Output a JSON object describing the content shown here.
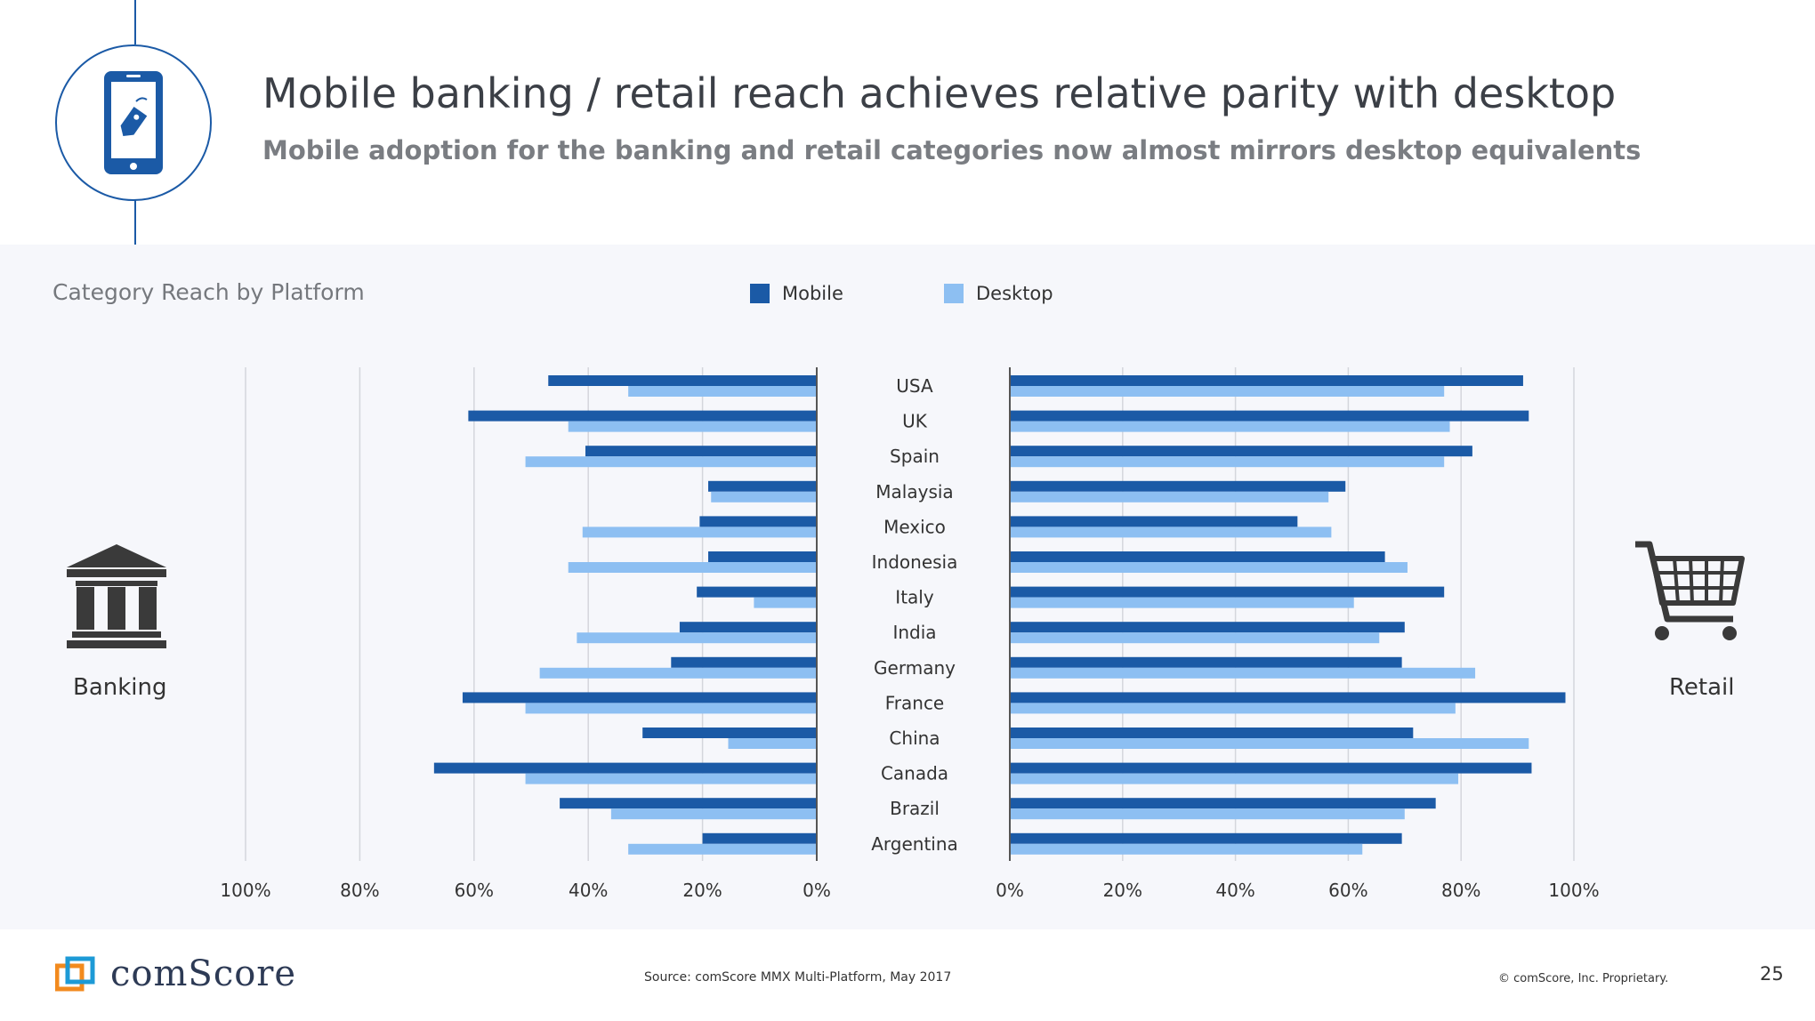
{
  "header": {
    "title": "Mobile banking / retail reach achieves relative parity with desktop",
    "subtitle": "Mobile adoption for the banking and retail categories now almost mirrors desktop equivalents",
    "icon": "mobile-tag-icon"
  },
  "panel": {
    "title": "Category Reach by Platform",
    "banking_label": "Banking",
    "retail_label": "Retail",
    "banking_icon": "bank-icon",
    "retail_icon": "shopping-cart-icon"
  },
  "legend": {
    "mobile": "Mobile",
    "desktop": "Desktop"
  },
  "colors": {
    "mobile": "#1b5aa6",
    "desktop": "#8dbff2",
    "accent": "#1b5aa6"
  },
  "chart_data": [
    {
      "type": "bar",
      "orientation": "horizontal",
      "direction": "right-to-left",
      "title": "",
      "categories": [
        "USA",
        "UK",
        "Spain",
        "Malaysia",
        "Mexico",
        "Indonesia",
        "Italy",
        "India",
        "Germany",
        "France",
        "China",
        "Canada",
        "Brazil",
        "Argentina"
      ],
      "series": [
        {
          "name": "Mobile",
          "values": [
            47,
            61,
            40.5,
            19,
            20.5,
            19,
            21,
            24,
            25.5,
            62,
            30.5,
            67,
            45,
            20
          ]
        },
        {
          "name": "Desktop",
          "values": [
            33,
            43.5,
            51,
            18.5,
            41,
            43.5,
            11,
            42,
            48.5,
            51,
            15.5,
            51,
            36,
            33
          ]
        }
      ],
      "xlim": [
        0,
        100
      ],
      "ticks": [
        "100%",
        "80%",
        "60%",
        "40%",
        "20%",
        "0%"
      ],
      "grid": true
    },
    {
      "type": "bar",
      "orientation": "horizontal",
      "direction": "left-to-right",
      "title": "",
      "categories": [
        "USA",
        "UK",
        "Spain",
        "Malaysia",
        "Mexico",
        "Indonesia",
        "Italy",
        "India",
        "Germany",
        "France",
        "China",
        "Canada",
        "Brazil",
        "Argentina"
      ],
      "series": [
        {
          "name": "Mobile",
          "values": [
            91,
            92,
            82,
            59.5,
            51,
            66.5,
            77,
            70,
            69.5,
            98.5,
            71.5,
            92.5,
            75.5,
            69.5
          ]
        },
        {
          "name": "Desktop",
          "values": [
            77,
            78,
            77,
            56.5,
            57,
            70.5,
            61,
            65.5,
            82.5,
            79,
            92,
            79.5,
            70,
            62.5
          ]
        }
      ],
      "xlim": [
        0,
        100
      ],
      "ticks": [
        "0%",
        "20%",
        "40%",
        "60%",
        "80%",
        "100%"
      ],
      "grid": true
    }
  ],
  "footer": {
    "logo_text": "comScore",
    "source": "Source: comScore MMX Multi-Platform, May 2017",
    "copyright": "© comScore, Inc. Proprietary.",
    "page_number": "25"
  }
}
